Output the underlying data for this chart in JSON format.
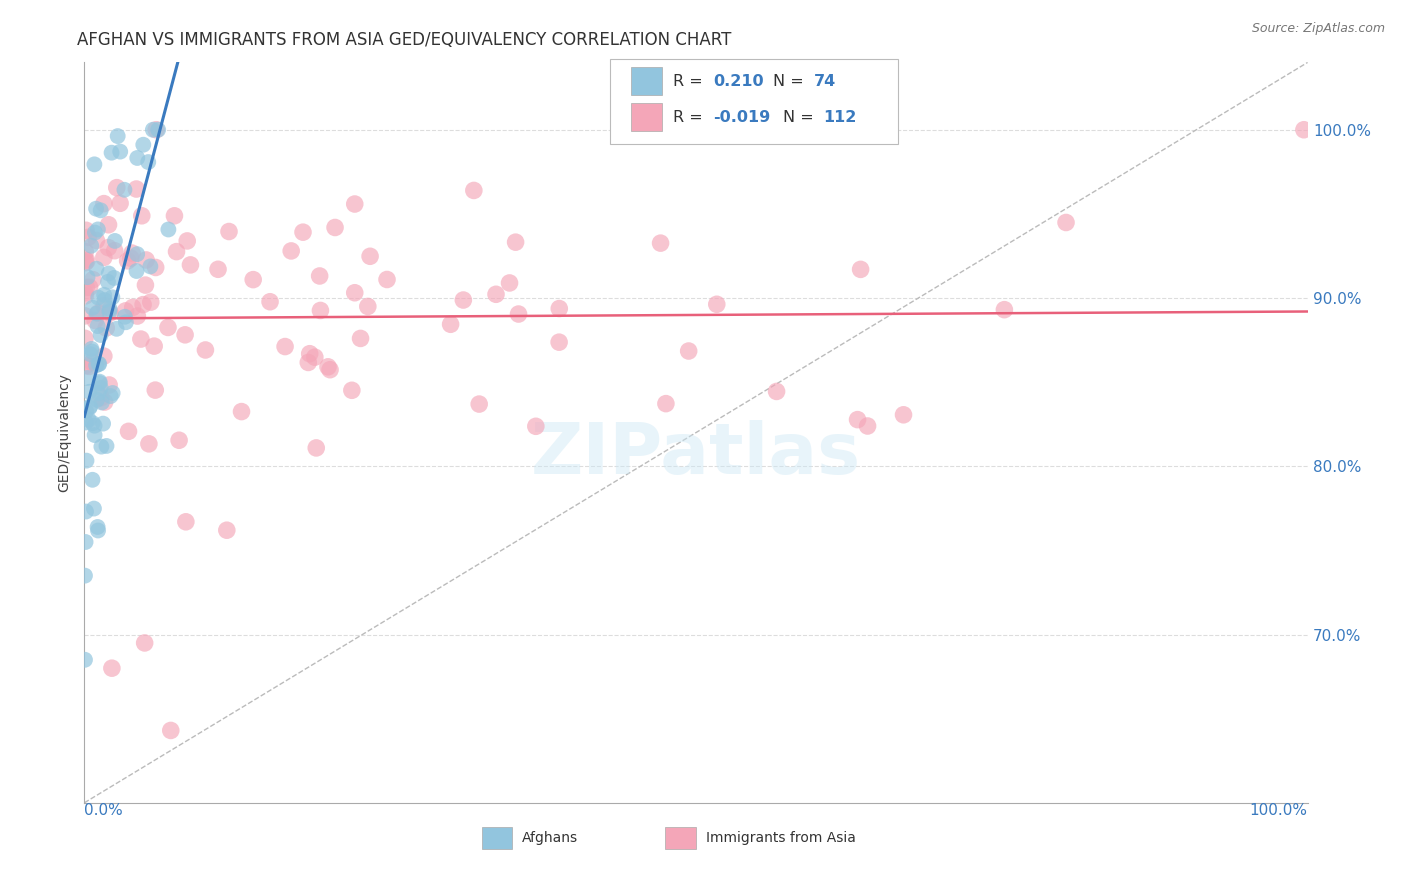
{
  "title": "AFGHAN VS IMMIGRANTS FROM ASIA GED/EQUIVALENCY CORRELATION CHART",
  "source": "Source: ZipAtlas.com",
  "ylabel": "GED/Equivalency",
  "legend_blue_R": "0.210",
  "legend_blue_N": "74",
  "legend_pink_R": "-0.019",
  "legend_pink_N": "112",
  "legend_label1": "Afghans",
  "legend_label2": "Immigrants from Asia",
  "blue_color": "#92c5de",
  "pink_color": "#f4a6b8",
  "blue_line_color": "#3a7abf",
  "pink_line_color": "#e8607a",
  "diag_color": "#bbbbbb",
  "grid_color": "#dddddd",
  "xlim": [
    0.0,
    1.0
  ],
  "ylim": [
    0.6,
    1.04
  ],
  "yticks": [
    0.7,
    0.8,
    0.9,
    1.0
  ],
  "ytick_labels": [
    "70.0%",
    "80.0%",
    "90.0%",
    "100.0%"
  ],
  "background_color": "#ffffff",
  "title_fontsize": 12,
  "axis_label_fontsize": 10,
  "tick_fontsize": 10,
  "source_fontsize": 9
}
